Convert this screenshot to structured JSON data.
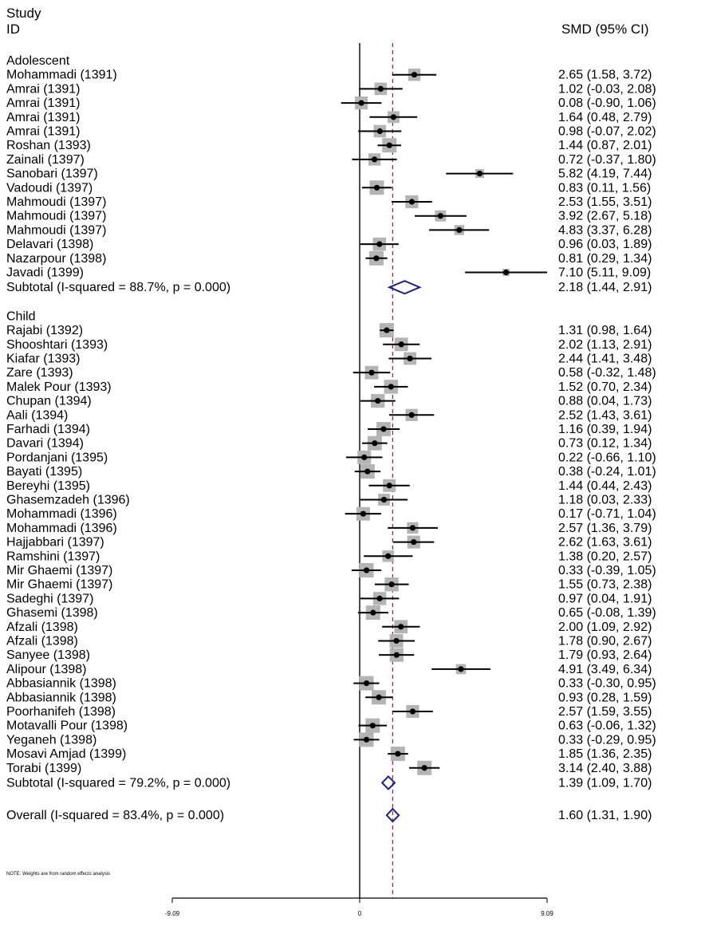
{
  "header": {
    "study": "Study",
    "id": "ID",
    "effect": "SMD (95% CI)"
  },
  "note": "NOTE: Weights are from random effects analysis",
  "chart_data": {
    "type": "forest",
    "x_ticks": [
      {
        "value": -9.09,
        "label": "-9.09"
      },
      {
        "value": 0,
        "label": "0"
      },
      {
        "value": 9.09,
        "label": "9.09"
      }
    ],
    "xlim": [
      -9.09,
      9.09
    ],
    "overall_line": 1.6,
    "groups": [
      {
        "name": "Adolescent",
        "studies": [
          {
            "label": "Mohammadi (1391)",
            "es": 2.65,
            "lo": 1.58,
            "hi": 3.72,
            "text": "2.65 (1.58, 3.72)"
          },
          {
            "label": "Amrai (1391)",
            "es": 1.02,
            "lo": -0.03,
            "hi": 2.08,
            "text": "1.02 (-0.03, 2.08)"
          },
          {
            "label": "Amrai (1391)",
            "es": 0.08,
            "lo": -0.9,
            "hi": 1.06,
            "text": "0.08 (-0.90, 1.06)"
          },
          {
            "label": "Amrai (1391)",
            "es": 1.64,
            "lo": 0.48,
            "hi": 2.79,
            "text": "1.64 (0.48, 2.79)"
          },
          {
            "label": "Amrai (1391)",
            "es": 0.98,
            "lo": -0.07,
            "hi": 2.02,
            "text": "0.98 (-0.07, 2.02)"
          },
          {
            "label": "Roshan (1393)",
            "es": 1.44,
            "lo": 0.87,
            "hi": 2.01,
            "text": "1.44 (0.87, 2.01)"
          },
          {
            "label": "Zainali (1397)",
            "es": 0.72,
            "lo": -0.37,
            "hi": 1.8,
            "text": "0.72 (-0.37, 1.80)"
          },
          {
            "label": "Sanobari (1397)",
            "es": 5.82,
            "lo": 4.19,
            "hi": 7.44,
            "text": "5.82 (4.19, 7.44)"
          },
          {
            "label": "Vadoudi (1397)",
            "es": 0.83,
            "lo": 0.11,
            "hi": 1.56,
            "text": "0.83 (0.11, 1.56)"
          },
          {
            "label": "Mahmoudi (1397)",
            "es": 2.53,
            "lo": 1.55,
            "hi": 3.51,
            "text": "2.53 (1.55, 3.51)"
          },
          {
            "label": "Mahmoudi (1397)",
            "es": 3.92,
            "lo": 2.67,
            "hi": 5.18,
            "text": "3.92 (2.67, 5.18)"
          },
          {
            "label": "Mahmoudi (1397)",
            "es": 4.83,
            "lo": 3.37,
            "hi": 6.28,
            "text": "4.83 (3.37, 6.28)"
          },
          {
            "label": "Delavari (1398)",
            "es": 0.96,
            "lo": 0.03,
            "hi": 1.89,
            "text": "0.96 (0.03, 1.89)"
          },
          {
            "label": "Nazarpour (1398)",
            "es": 0.81,
            "lo": 0.29,
            "hi": 1.34,
            "text": "0.81 (0.29, 1.34)"
          },
          {
            "label": "Javadi (1399)",
            "es": 7.1,
            "lo": 5.11,
            "hi": 9.09,
            "text": "7.10 (5.11, 9.09)"
          }
        ],
        "subtotal": {
          "label": "Subtotal  (I-squared = 88.7%, p = 0.000)",
          "es": 2.18,
          "lo": 1.44,
          "hi": 2.91,
          "text": "2.18 (1.44, 2.91)"
        }
      },
      {
        "name": "Child",
        "studies": [
          {
            "label": "Rajabi (1392)",
            "es": 1.31,
            "lo": 0.98,
            "hi": 1.64,
            "text": "1.31 (0.98, 1.64)"
          },
          {
            "label": "Shooshtari (1393)",
            "es": 2.02,
            "lo": 1.13,
            "hi": 2.91,
            "text": "2.02 (1.13, 2.91)"
          },
          {
            "label": "Kiafar (1393)",
            "es": 2.44,
            "lo": 1.41,
            "hi": 3.48,
            "text": "2.44 (1.41, 3.48)"
          },
          {
            "label": "Zare (1393)",
            "es": 0.58,
            "lo": -0.32,
            "hi": 1.48,
            "text": "0.58 (-0.32, 1.48)"
          },
          {
            "label": "Malek Pour (1393)",
            "es": 1.52,
            "lo": 0.7,
            "hi": 2.34,
            "text": "1.52 (0.70, 2.34)"
          },
          {
            "label": "Chupan (1394)",
            "es": 0.88,
            "lo": 0.04,
            "hi": 1.73,
            "text": "0.88 (0.04, 1.73)"
          },
          {
            "label": "Aali (1394)",
            "es": 2.52,
            "lo": 1.43,
            "hi": 3.61,
            "text": "2.52 (1.43, 3.61)"
          },
          {
            "label": "Farhadi (1394)",
            "es": 1.16,
            "lo": 0.39,
            "hi": 1.94,
            "text": "1.16 (0.39, 1.94)"
          },
          {
            "label": "Davari (1394)",
            "es": 0.73,
            "lo": 0.12,
            "hi": 1.34,
            "text": "0.73 (0.12, 1.34)"
          },
          {
            "label": "Pordanjani (1395)",
            "es": 0.22,
            "lo": -0.66,
            "hi": 1.1,
            "text": "0.22 (-0.66, 1.10)"
          },
          {
            "label": "Bayati (1395)",
            "es": 0.38,
            "lo": -0.24,
            "hi": 1.01,
            "text": "0.38 (-0.24, 1.01)"
          },
          {
            "label": "Bereyhi (1395)",
            "es": 1.44,
            "lo": 0.44,
            "hi": 2.43,
            "text": "1.44 (0.44, 2.43)"
          },
          {
            "label": "Ghasemzadeh (1396)",
            "es": 1.18,
            "lo": 0.03,
            "hi": 2.33,
            "text": "1.18 (0.03, 2.33)"
          },
          {
            "label": "Mohammadi (1396)",
            "es": 0.17,
            "lo": -0.71,
            "hi": 1.04,
            "text": "0.17 (-0.71, 1.04)"
          },
          {
            "label": "Mohammadi (1396)",
            "es": 2.57,
            "lo": 1.36,
            "hi": 3.79,
            "text": "2.57 (1.36, 3.79)"
          },
          {
            "label": "Hajjabbari (1397)",
            "es": 2.62,
            "lo": 1.63,
            "hi": 3.61,
            "text": "2.62 (1.63, 3.61)"
          },
          {
            "label": "Ramshini (1397)",
            "es": 1.38,
            "lo": 0.2,
            "hi": 2.57,
            "text": "1.38 (0.20, 2.57)"
          },
          {
            "label": "Mir Ghaemi (1397)",
            "es": 0.33,
            "lo": -0.39,
            "hi": 1.05,
            "text": "0.33 (-0.39, 1.05)"
          },
          {
            "label": "Mir Ghaemi (1397)",
            "es": 1.55,
            "lo": 0.73,
            "hi": 2.38,
            "text": "1.55 (0.73, 2.38)"
          },
          {
            "label": "Sadeghi (1397)",
            "es": 0.97,
            "lo": 0.04,
            "hi": 1.91,
            "text": "0.97 (0.04, 1.91)"
          },
          {
            "label": "Ghasemi (1398)",
            "es": 0.65,
            "lo": -0.08,
            "hi": 1.39,
            "text": "0.65 (-0.08, 1.39)"
          },
          {
            "label": "Afzali (1398)",
            "es": 2.0,
            "lo": 1.09,
            "hi": 2.92,
            "text": "2.00 (1.09, 2.92)"
          },
          {
            "label": "Afzali (1398)",
            "es": 1.78,
            "lo": 0.9,
            "hi": 2.67,
            "text": "1.78 (0.90, 2.67)"
          },
          {
            "label": "Sanyee (1398)",
            "es": 1.79,
            "lo": 0.93,
            "hi": 2.64,
            "text": "1.79 (0.93, 2.64)"
          },
          {
            "label": "Alipour (1398)",
            "es": 4.91,
            "lo": 3.49,
            "hi": 6.34,
            "text": "4.91 (3.49, 6.34)"
          },
          {
            "label": "Abbasiannik (1398)",
            "es": 0.33,
            "lo": -0.3,
            "hi": 0.95,
            "text": "0.33 (-0.30, 0.95)"
          },
          {
            "label": "Abbasiannik (1398)",
            "es": 0.93,
            "lo": 0.28,
            "hi": 1.59,
            "text": "0.93 (0.28, 1.59)"
          },
          {
            "label": "Poorhanifeh (1398)",
            "es": 2.57,
            "lo": 1.59,
            "hi": 3.55,
            "text": "2.57 (1.59, 3.55)"
          },
          {
            "label": "Motavalli Pour (1398)",
            "es": 0.63,
            "lo": -0.06,
            "hi": 1.32,
            "text": "0.63 (-0.06, 1.32)"
          },
          {
            "label": "Yeganeh (1398)",
            "es": 0.33,
            "lo": -0.29,
            "hi": 0.95,
            "text": "0.33 (-0.29, 0.95)"
          },
          {
            "label": "Mosavi Amjad (1399)",
            "es": 1.85,
            "lo": 1.36,
            "hi": 2.35,
            "text": "1.85 (1.36, 2.35)"
          },
          {
            "label": "Torabi (1399)",
            "es": 3.14,
            "lo": 2.4,
            "hi": 3.88,
            "text": "3.14 (2.40, 3.88)"
          }
        ],
        "subtotal": {
          "label": "Subtotal  (I-squared = 79.2%, p = 0.000)",
          "es": 1.39,
          "lo": 1.09,
          "hi": 1.7,
          "text": "1.39 (1.09, 1.70)"
        }
      }
    ],
    "overall": {
      "label": "Overall  (I-squared = 83.4%, p = 0.000)",
      "es": 1.6,
      "lo": 1.31,
      "hi": 1.9,
      "text": "1.60 (1.31, 1.90)"
    }
  }
}
